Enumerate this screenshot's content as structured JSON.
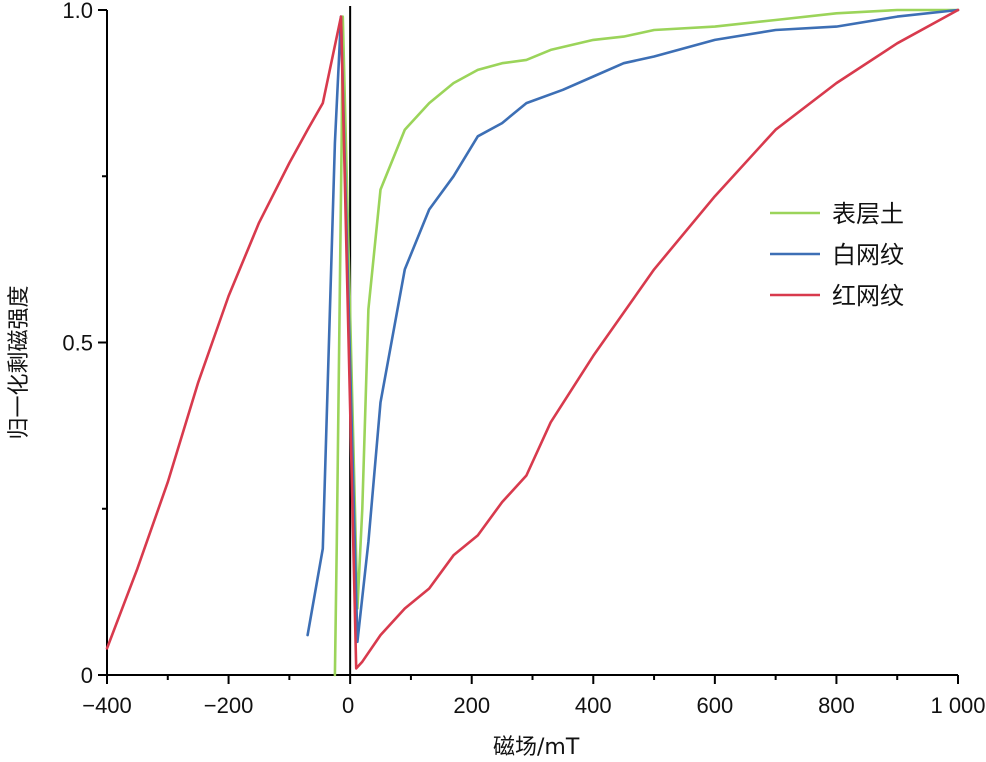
{
  "chart_data": {
    "type": "line",
    "xlabel": "磁场/mT",
    "ylabel": "归一化剩磁强度",
    "xlim": [
      -400,
      1000
    ],
    "ylim": [
      0,
      1
    ],
    "x_ticks": [
      -400,
      -200,
      0,
      200,
      400,
      600,
      800,
      1000
    ],
    "x_tick_labels": [
      "−400",
      "−200",
      "0",
      "200",
      "400",
      "600",
      "800",
      "1 000"
    ],
    "y_ticks": [
      0,
      0.5,
      1
    ],
    "y_tick_labels": [
      "0",
      "0.5",
      "1.0"
    ],
    "legend_position": "right",
    "grid": false,
    "series": [
      {
        "name": "表层土",
        "color": "#9bd45a",
        "x": [
          -25,
          -22,
          -18,
          -14,
          -12,
          12,
          20,
          30,
          50,
          90,
          130,
          170,
          210,
          250,
          290,
          330,
          400,
          450,
          500,
          600,
          700,
          800,
          900,
          1000
        ],
        "y": [
          0.0,
          0.2,
          0.5,
          0.8,
          0.99,
          0.1,
          0.25,
          0.55,
          0.73,
          0.82,
          0.86,
          0.89,
          0.91,
          0.92,
          0.925,
          0.94,
          0.955,
          0.96,
          0.97,
          0.975,
          0.985,
          0.995,
          1.0,
          1.0
        ]
      },
      {
        "name": "白网纹",
        "color": "#3d6fb5",
        "x": [
          -70,
          -45,
          -25,
          -15,
          12,
          30,
          50,
          90,
          130,
          170,
          210,
          250,
          290,
          350,
          400,
          450,
          500,
          600,
          700,
          800,
          900,
          1000
        ],
        "y": [
          0.06,
          0.19,
          0.8,
          0.99,
          0.05,
          0.2,
          0.41,
          0.61,
          0.7,
          0.75,
          0.81,
          0.83,
          0.86,
          0.88,
          0.9,
          0.92,
          0.93,
          0.955,
          0.97,
          0.975,
          0.99,
          1.0
        ]
      },
      {
        "name": "红网纹",
        "color": "#d83a4d",
        "x": [
          -400,
          -350,
          -300,
          -250,
          -200,
          -150,
          -100,
          -70,
          -45,
          -15,
          10,
          20,
          50,
          90,
          130,
          170,
          210,
          250,
          290,
          330,
          400,
          500,
          600,
          700,
          800,
          900,
          1000
        ],
        "y": [
          0.04,
          0.16,
          0.29,
          0.44,
          0.57,
          0.68,
          0.77,
          0.82,
          0.86,
          0.99,
          0.01,
          0.02,
          0.06,
          0.1,
          0.13,
          0.18,
          0.21,
          0.26,
          0.3,
          0.38,
          0.48,
          0.61,
          0.72,
          0.82,
          0.89,
          0.95,
          1.0
        ]
      }
    ]
  }
}
